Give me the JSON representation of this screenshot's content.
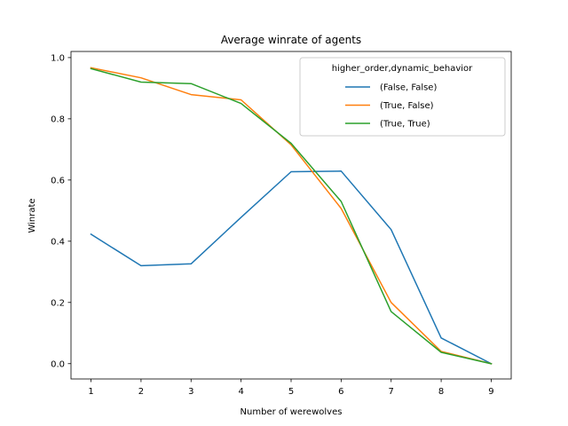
{
  "chart_data": {
    "type": "line",
    "title": "Average winrate of agents",
    "xlabel": "Number of werewolves",
    "ylabel": "Winrate",
    "x": [
      1,
      2,
      3,
      4,
      5,
      6,
      7,
      8,
      9
    ],
    "xlim": [
      0.6,
      9.4
    ],
    "ylim": [
      -0.05,
      1.02
    ],
    "xticks": [
      1,
      2,
      3,
      4,
      5,
      6,
      7,
      8,
      9
    ],
    "yticks": [
      0.0,
      0.2,
      0.4,
      0.6,
      0.8,
      1.0
    ],
    "ytick_labels": [
      "0.0",
      "0.2",
      "0.4",
      "0.6",
      "0.8",
      "1.0"
    ],
    "grid": false,
    "legend": {
      "title": "higher_order,dynamic_behavior",
      "placement": "top-right"
    },
    "series": [
      {
        "name": "(False, False)",
        "color": "#1f77b4",
        "values": [
          0.423,
          0.32,
          0.326,
          0.478,
          0.627,
          0.629,
          0.438,
          0.084,
          0.0
        ]
      },
      {
        "name": "(True, False)",
        "color": "#ff7f0e",
        "values": [
          0.967,
          0.934,
          0.879,
          0.862,
          0.715,
          0.507,
          0.2,
          0.04,
          0.0
        ]
      },
      {
        "name": "(True, True)",
        "color": "#2ca02c",
        "values": [
          0.964,
          0.92,
          0.915,
          0.85,
          0.72,
          0.53,
          0.17,
          0.037,
          0.0
        ]
      }
    ]
  }
}
